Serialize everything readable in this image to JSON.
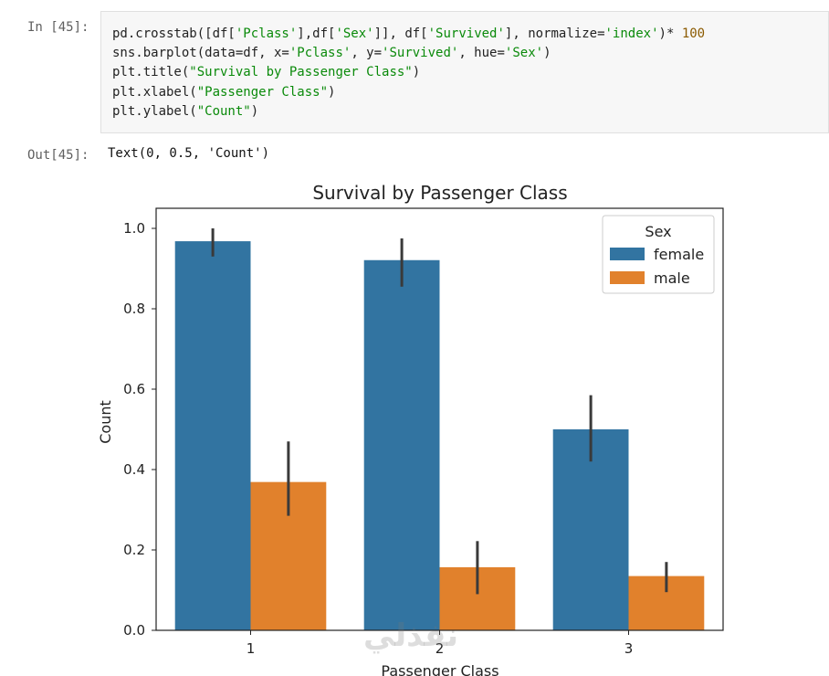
{
  "input_prompt": "In [45]:",
  "output_prompt": "Out[45]:",
  "code": {
    "l1_a": "pd.crosstab([df[",
    "l1_s1": "'Pclass'",
    "l1_b": "],df[",
    "l1_s2": "'Sex'",
    "l1_c": "]], df[",
    "l1_s3": "'Survived'",
    "l1_d": "], normalize=",
    "l1_s4": "'index'",
    "l1_e": ")* ",
    "l1_n": "100",
    "l2_a": "sns.barplot(data=df, x=",
    "l2_s1": "'Pclass'",
    "l2_b": ", y=",
    "l2_s2": "'Survived'",
    "l2_c": ", hue=",
    "l2_s3": "'Sex'",
    "l2_d": ")",
    "l3_a": "plt.title(",
    "l3_s": "\"Survival by Passenger Class\"",
    "l3_b": ")",
    "l4_a": "plt.xlabel(",
    "l4_s": "\"Passenger Class\"",
    "l4_b": ")",
    "l5_a": "plt.ylabel(",
    "l5_s": "\"Count\"",
    "l5_b": ")"
  },
  "output_text": "Text(0, 0.5, 'Count')",
  "watermark": "نفذلي",
  "colors": {
    "female": "#3274a1",
    "male": "#e1812c",
    "errorbar": "#3a3a3a"
  },
  "chart_data": {
    "type": "bar",
    "title": "Survival by Passenger Class",
    "xlabel": "Passenger Class",
    "ylabel": "Count",
    "categories": [
      "1",
      "2",
      "3"
    ],
    "series": [
      {
        "name": "female",
        "values": [
          0.968,
          0.921,
          0.5
        ],
        "err_low": [
          0.93,
          0.855,
          0.42
        ],
        "err_high": [
          1.0,
          0.975,
          0.585
        ]
      },
      {
        "name": "male",
        "values": [
          0.369,
          0.157,
          0.135
        ],
        "err_low": [
          0.285,
          0.09,
          0.095
        ],
        "err_high": [
          0.47,
          0.222,
          0.17
        ]
      }
    ],
    "ylim": [
      0,
      1.05
    ],
    "yticks": [
      "0.0",
      "0.2",
      "0.4",
      "0.6",
      "0.8",
      "1.0"
    ],
    "legend_title": "Sex",
    "legend_position": "top-right",
    "grid": false
  }
}
